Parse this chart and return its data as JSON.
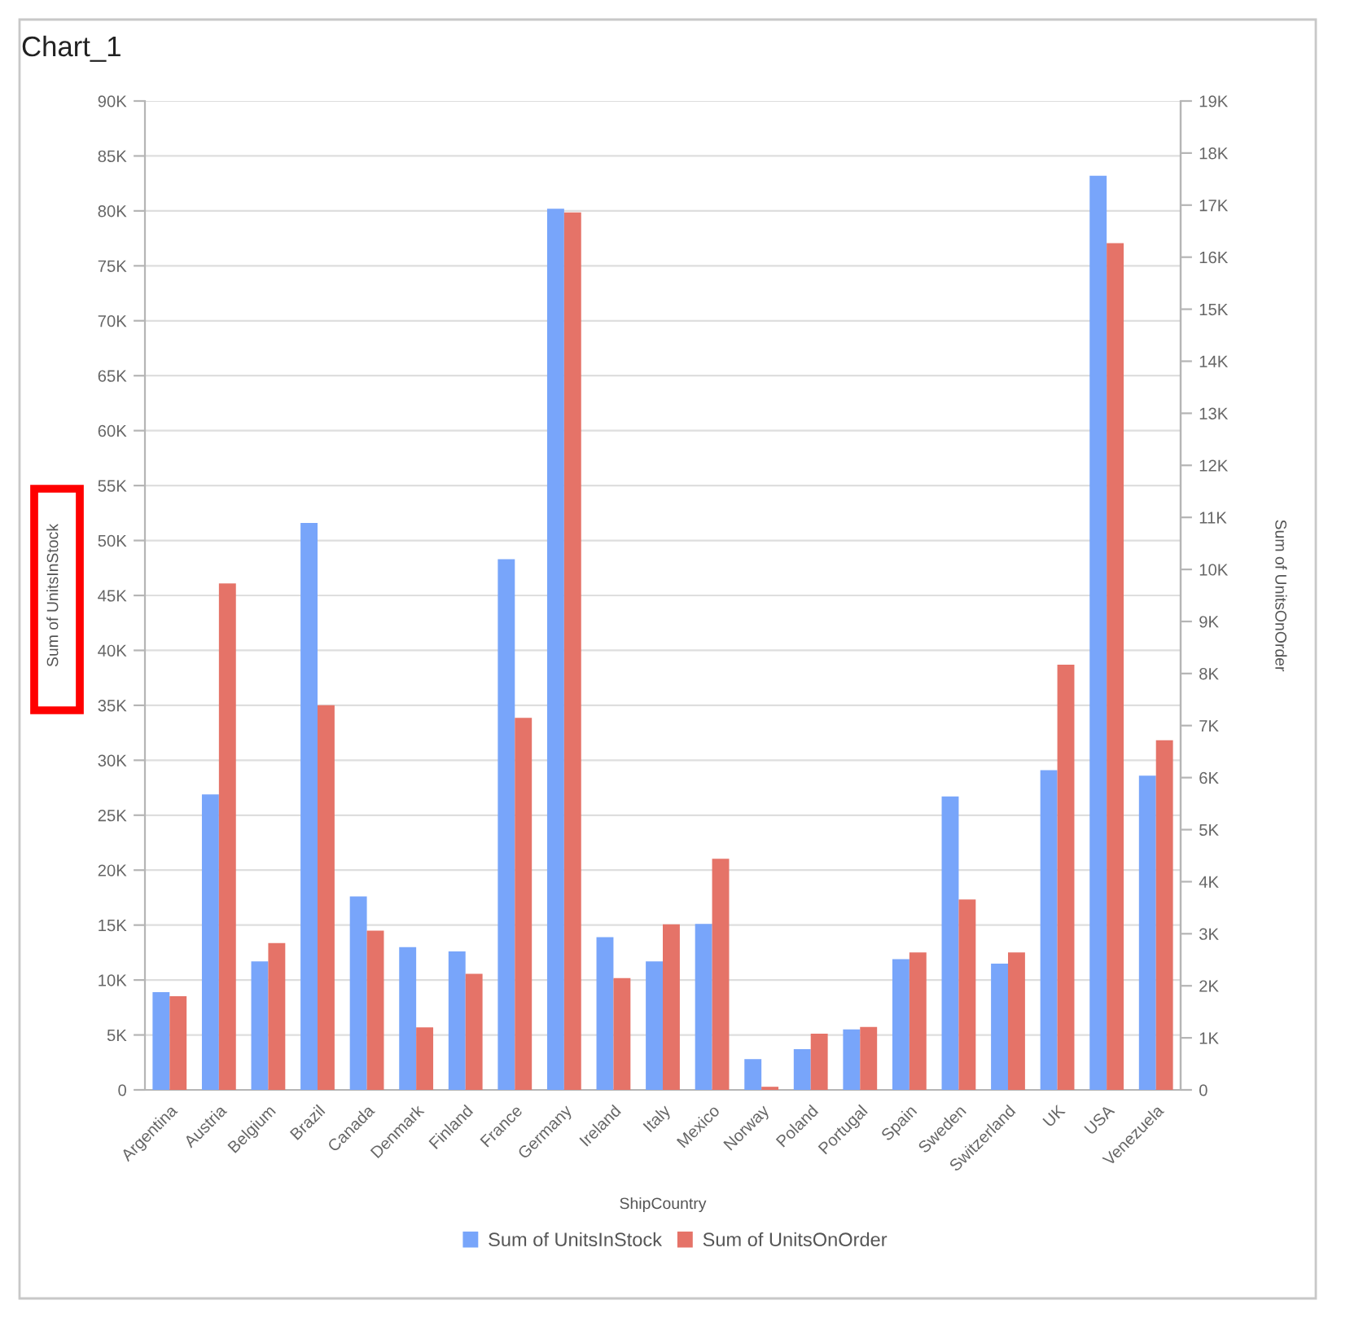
{
  "chart_data": {
    "type": "bar",
    "title": "Chart_1",
    "xlabel": "ShipCountry",
    "ylabel": "Sum of UnitsInStock",
    "y2label": "Sum of UnitsOnOrder",
    "categories": [
      "Argentina",
      "Austria",
      "Belgium",
      "Brazil",
      "Canada",
      "Denmark",
      "Finland",
      "France",
      "Germany",
      "Ireland",
      "Italy",
      "Mexico",
      "Norway",
      "Poland",
      "Portugal",
      "Spain",
      "Sweden",
      "Switzerland",
      "UK",
      "USA",
      "Venezuela"
    ],
    "series": [
      {
        "name": "Sum of UnitsInStock",
        "color": "#78a5fa",
        "values": [
          8900,
          26900,
          11700,
          51600,
          17600,
          13000,
          12600,
          48300,
          80200,
          13900,
          11700,
          15100,
          2800,
          3700,
          5500,
          11900,
          26700,
          11500,
          29100,
          83200,
          28600
        ]
      },
      {
        "name": "Sum of UnitsOnOrder",
        "color": "#e57368",
        "axis": "y2",
        "values": [
          1800,
          9730,
          2820,
          7390,
          3060,
          1200,
          2230,
          7150,
          16860,
          2150,
          3180,
          4440,
          60,
          1080,
          1210,
          2640,
          3660,
          2640,
          8170,
          16270,
          6720
        ]
      }
    ],
    "ylim": [
      0,
      90000
    ],
    "yticks": [
      0,
      {
        "value": 5000,
        "label": "5K"
      },
      {
        "value": 10000,
        "label": "10K"
      },
      {
        "value": 15000,
        "label": "15K"
      },
      {
        "value": 20000,
        "label": "20K"
      },
      {
        "value": 25000,
        "label": "25K"
      },
      {
        "value": 30000,
        "label": "30K"
      },
      {
        "value": 35000,
        "label": "35K"
      },
      {
        "value": 40000,
        "label": "40K"
      },
      {
        "value": 45000,
        "label": "45K"
      },
      {
        "value": 50000,
        "label": "50K"
      },
      {
        "value": 55000,
        "label": "55K"
      },
      {
        "value": 60000,
        "label": "60K"
      },
      {
        "value": 65000,
        "label": "65K"
      },
      {
        "value": 70000,
        "label": "70K"
      },
      {
        "value": 75000,
        "label": "75K"
      },
      {
        "value": 80000,
        "label": "80K"
      },
      {
        "value": 85000,
        "label": "85K"
      },
      {
        "value": 90000,
        "label": "90K"
      }
    ],
    "y2lim": [
      0,
      19000
    ],
    "y2ticks": [
      0,
      {
        "value": 1000,
        "label": "1K"
      },
      {
        "value": 2000,
        "label": "2K"
      },
      {
        "value": 3000,
        "label": "3K"
      },
      {
        "value": 4000,
        "label": "4K"
      },
      {
        "value": 5000,
        "label": "5K"
      },
      {
        "value": 6000,
        "label": "6K"
      },
      {
        "value": 7000,
        "label": "7K"
      },
      {
        "value": 8000,
        "label": "8K"
      },
      {
        "value": 9000,
        "label": "9K"
      },
      {
        "value": 10000,
        "label": "10K"
      },
      {
        "value": 11000,
        "label": "11K"
      },
      {
        "value": 12000,
        "label": "12K"
      },
      {
        "value": 13000,
        "label": "13K"
      },
      {
        "value": 14000,
        "label": "14K"
      },
      {
        "value": 15000,
        "label": "15K"
      },
      {
        "value": 16000,
        "label": "16K"
      },
      {
        "value": 17000,
        "label": "17K"
      },
      {
        "value": 18000,
        "label": "18K"
      },
      {
        "value": 19000,
        "label": "19K"
      }
    ],
    "grid": "y",
    "legend": "bottom"
  }
}
